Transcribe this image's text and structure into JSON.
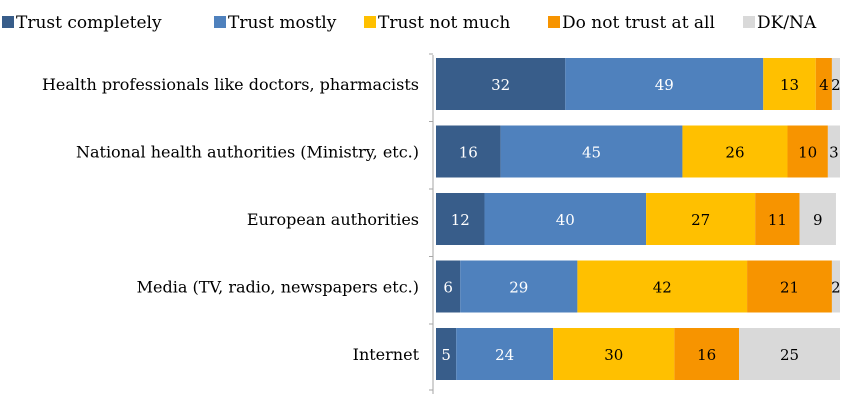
{
  "chart_data": {
    "type": "bar",
    "orientation": "horizontal",
    "stacked": true,
    "title": "",
    "xlabel": "",
    "ylabel": "",
    "xlim": [
      0,
      100
    ],
    "legend_position": "top",
    "grid": false,
    "categories": [
      "Health professionals like doctors, pharmacists",
      "National health authorities (Ministry, etc.)",
      "European authorities",
      "Media (TV, radio, newspapers etc.)",
      "Internet"
    ],
    "series": [
      {
        "name": "Trust completely",
        "color": "#385d8a",
        "label_color": "#ffffff",
        "values": [
          32,
          16,
          12,
          6,
          5
        ]
      },
      {
        "name": "Trust mostly",
        "color": "#4f81bd",
        "label_color": "#ffffff",
        "values": [
          49,
          45,
          40,
          29,
          24
        ]
      },
      {
        "name": "Trust not much",
        "color": "#ffc000",
        "label_color": "#000000",
        "values": [
          13,
          26,
          27,
          42,
          30
        ]
      },
      {
        "name": "Do not trust at all",
        "color": "#f79400",
        "label_color": "#000000",
        "values": [
          4,
          10,
          11,
          21,
          16
        ]
      },
      {
        "name": "DK/NA",
        "color": "#d9d9d9",
        "label_color": "#000000",
        "values": [
          2,
          3,
          9,
          2,
          25
        ]
      }
    ]
  }
}
